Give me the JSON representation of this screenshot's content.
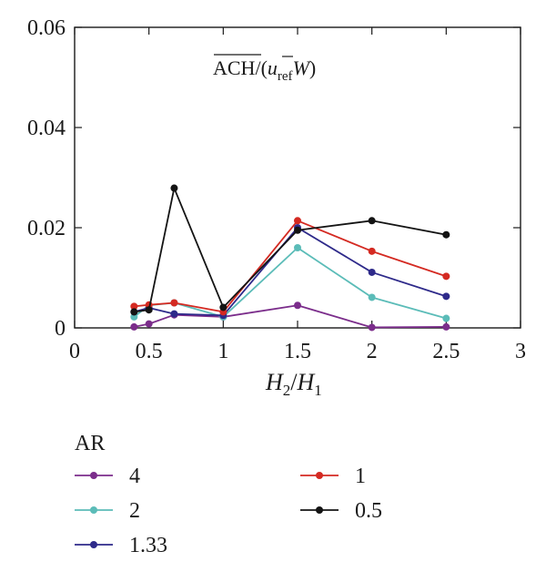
{
  "chart_data": {
    "type": "line",
    "x_label": {
      "base": "H",
      "sub1": "2",
      "slash": "/",
      "sub2": "1"
    },
    "annotation": {
      "main": "ACH",
      "mid": "/(",
      "u": "u",
      "sub": "ref",
      "w": "W",
      "close": ")"
    },
    "xlim": [
      0,
      3
    ],
    "ylim": [
      0,
      0.06
    ],
    "x_ticks": [
      0,
      0.5,
      1,
      1.5,
      2,
      2.5,
      3
    ],
    "x_tick_labels": [
      "0",
      "0.5",
      "1",
      "1.5",
      "2",
      "2.5",
      "3"
    ],
    "y_ticks": [
      0,
      0.02,
      0.04,
      0.06
    ],
    "y_tick_labels": [
      "0",
      "0.02",
      "0.04",
      "0.06"
    ],
    "grid": false,
    "legend": {
      "title": "AR",
      "placement": "below"
    },
    "x": [
      0.4,
      0.5,
      0.67,
      1,
      1.5,
      2,
      2.5
    ],
    "series": [
      {
        "name": "4",
        "color": "#7b2d8b",
        "values": [
          0.0002,
          0.0008,
          0.0026,
          0.0022,
          0.0045,
          0.0001,
          0.0002
        ]
      },
      {
        "name": "2",
        "color": "#5bbcb8",
        "values": [
          0.0022,
          0.0045,
          0.005,
          0.0022,
          0.016,
          0.0061,
          0.0019
        ]
      },
      {
        "name": "1.33",
        "color": "#2e2a8a",
        "values": [
          0.0032,
          0.004,
          0.0028,
          0.0025,
          0.02,
          0.0111,
          0.0063
        ]
      },
      {
        "name": "1",
        "color": "#d42a22",
        "values": [
          0.0043,
          0.0046,
          0.005,
          0.0032,
          0.0214,
          0.0153,
          0.0103
        ]
      },
      {
        "name": "0.5",
        "color": "#141414",
        "values": [
          0.0032,
          0.0036,
          0.0279,
          0.0041,
          0.0195,
          0.0214,
          0.0186
        ]
      }
    ]
  }
}
